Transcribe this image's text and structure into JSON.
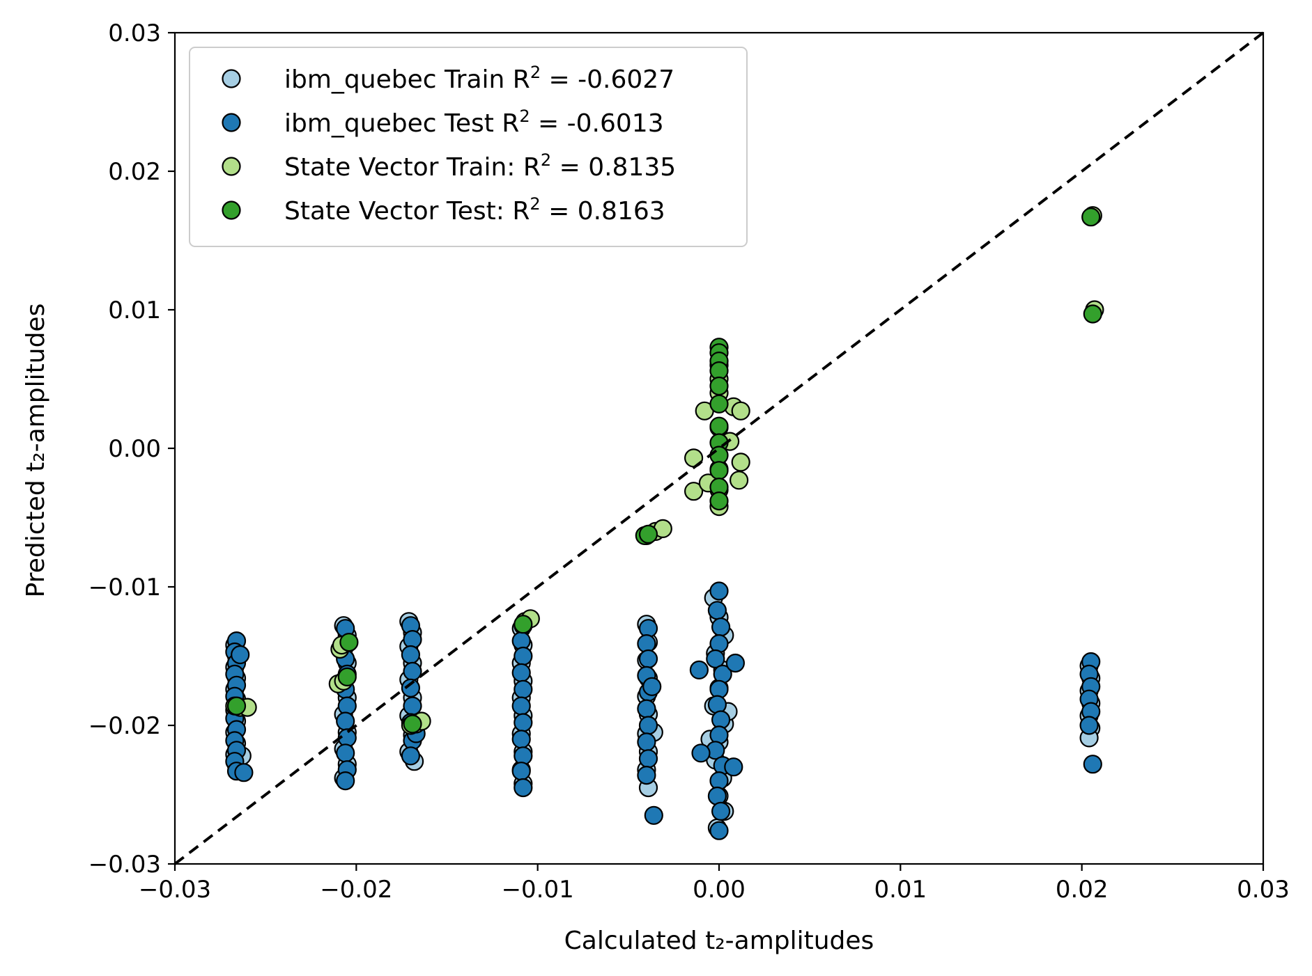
{
  "chart_data": {
    "type": "scatter",
    "xlabel": "Calculated t₂-amplitudes",
    "ylabel": "Predicted t₂-amplitudes",
    "xlim": [
      -0.03,
      0.03
    ],
    "ylim": [
      -0.03,
      0.03
    ],
    "x_ticks": [
      -0.03,
      -0.02,
      -0.01,
      0.0,
      0.01,
      0.02,
      0.03
    ],
    "y_ticks": [
      -0.03,
      -0.02,
      -0.01,
      0.0,
      0.01,
      0.02,
      0.03
    ],
    "x_tick_labels": [
      "−0.03",
      "−0.02",
      "−0.01",
      "0.00",
      "0.01",
      "0.02",
      "0.03"
    ],
    "y_tick_labels": [
      "−0.03",
      "−0.02",
      "−0.01",
      "0.00",
      "0.01",
      "0.02",
      "0.03"
    ],
    "grid": false,
    "legend_position": "top-left",
    "reference_line": {
      "style": "dashed",
      "color": "#000000",
      "from": [
        -0.03,
        -0.03
      ],
      "to": [
        0.03,
        0.03
      ]
    },
    "series": [
      {
        "name": "ibm_quebec Train R² = -0.6027",
        "legend": {
          "prefix": "ibm_quebec Train R",
          "sup": "2",
          "suffix": " = -0.6027"
        },
        "color": "#a6cee3",
        "points": [
          [
            -0.0267,
            -0.0142
          ],
          [
            -0.0266,
            -0.015
          ],
          [
            -0.0267,
            -0.0158
          ],
          [
            -0.0266,
            -0.0166
          ],
          [
            -0.0267,
            -0.0174
          ],
          [
            -0.0266,
            -0.0181
          ],
          [
            -0.0267,
            -0.0189
          ],
          [
            -0.0266,
            -0.0197
          ],
          [
            -0.0267,
            -0.0205
          ],
          [
            -0.0266,
            -0.0213
          ],
          [
            -0.0267,
            -0.0221
          ],
          [
            -0.0266,
            -0.0229
          ],
          [
            -0.0263,
            -0.0222
          ],
          [
            -0.0207,
            -0.0128
          ],
          [
            -0.0205,
            -0.0135
          ],
          [
            -0.0207,
            -0.0145
          ],
          [
            -0.0205,
            -0.0155
          ],
          [
            -0.0207,
            -0.0168
          ],
          [
            -0.0205,
            -0.018
          ],
          [
            -0.0207,
            -0.0192
          ],
          [
            -0.0205,
            -0.0205
          ],
          [
            -0.0207,
            -0.0217
          ],
          [
            -0.0205,
            -0.0228
          ],
          [
            -0.0207,
            -0.0238
          ],
          [
            -0.0171,
            -0.0125
          ],
          [
            -0.0169,
            -0.0133
          ],
          [
            -0.0171,
            -0.0143
          ],
          [
            -0.0169,
            -0.0155
          ],
          [
            -0.0171,
            -0.0167
          ],
          [
            -0.0169,
            -0.018
          ],
          [
            -0.0171,
            -0.0193
          ],
          [
            -0.0169,
            -0.0207
          ],
          [
            -0.0171,
            -0.0219
          ],
          [
            -0.0168,
            -0.0226
          ],
          [
            -0.0109,
            -0.013
          ],
          [
            -0.0108,
            -0.0142
          ],
          [
            -0.0109,
            -0.0155
          ],
          [
            -0.0108,
            -0.0168
          ],
          [
            -0.0109,
            -0.018
          ],
          [
            -0.0108,
            -0.0193
          ],
          [
            -0.0109,
            -0.0206
          ],
          [
            -0.0108,
            -0.0219
          ],
          [
            -0.0109,
            -0.0232
          ],
          [
            -0.0108,
            -0.0242
          ],
          [
            -0.004,
            -0.0127
          ],
          [
            -0.0039,
            -0.014
          ],
          [
            -0.004,
            -0.0153
          ],
          [
            -0.0039,
            -0.0166
          ],
          [
            -0.004,
            -0.0179
          ],
          [
            -0.0039,
            -0.0192
          ],
          [
            -0.004,
            -0.0206
          ],
          [
            -0.0039,
            -0.0219
          ],
          [
            -0.004,
            -0.0232
          ],
          [
            -0.0039,
            -0.0245
          ],
          [
            -0.0036,
            -0.0205
          ],
          [
            -0.0003,
            -0.0108
          ],
          [
            0.0,
            -0.0122
          ],
          [
            0.0003,
            -0.0135
          ],
          [
            -0.0002,
            -0.0148
          ],
          [
            0.0002,
            -0.016
          ],
          [
            0.0,
            -0.0173
          ],
          [
            -0.0003,
            -0.0186
          ],
          [
            0.0003,
            -0.0199
          ],
          [
            0.0,
            -0.0212
          ],
          [
            -0.0002,
            -0.0225
          ],
          [
            0.0002,
            -0.0238
          ],
          [
            0.0,
            -0.0251
          ],
          [
            0.0003,
            -0.0262
          ],
          [
            -0.0001,
            -0.0274
          ],
          [
            0.0005,
            -0.019
          ],
          [
            -0.0005,
            -0.021
          ],
          [
            0.0204,
            -0.0157
          ],
          [
            0.0205,
            -0.0166
          ],
          [
            0.0204,
            -0.0175
          ],
          [
            0.0205,
            -0.0184
          ],
          [
            0.0204,
            -0.0193
          ],
          [
            0.0205,
            -0.0202
          ],
          [
            0.0204,
            -0.0209
          ]
        ]
      },
      {
        "name": "ibm_quebec Test R² = -0.6013",
        "legend": {
          "prefix": "ibm_quebec Test R",
          "sup": "2",
          "suffix": " = -0.6013"
        },
        "color": "#1f78b4",
        "points": [
          [
            -0.0266,
            -0.0139
          ],
          [
            -0.0267,
            -0.0147
          ],
          [
            -0.0266,
            -0.0155
          ],
          [
            -0.0267,
            -0.0163
          ],
          [
            -0.0266,
            -0.0171
          ],
          [
            -0.0267,
            -0.0179
          ],
          [
            -0.0266,
            -0.0187
          ],
          [
            -0.0267,
            -0.0195
          ],
          [
            -0.0266,
            -0.0203
          ],
          [
            -0.0267,
            -0.0211
          ],
          [
            -0.0266,
            -0.0218
          ],
          [
            -0.0267,
            -0.0226
          ],
          [
            -0.0266,
            -0.0233
          ],
          [
            -0.0262,
            -0.0234
          ],
          [
            -0.0264,
            -0.0149
          ],
          [
            -0.0206,
            -0.013
          ],
          [
            -0.0205,
            -0.0141
          ],
          [
            -0.0206,
            -0.0152
          ],
          [
            -0.0205,
            -0.0163
          ],
          [
            -0.0206,
            -0.0174
          ],
          [
            -0.0205,
            -0.0186
          ],
          [
            -0.0206,
            -0.0197
          ],
          [
            -0.0205,
            -0.0209
          ],
          [
            -0.0206,
            -0.022
          ],
          [
            -0.0205,
            -0.0232
          ],
          [
            -0.0206,
            -0.024
          ],
          [
            -0.017,
            -0.0128
          ],
          [
            -0.0169,
            -0.0138
          ],
          [
            -0.017,
            -0.0149
          ],
          [
            -0.0169,
            -0.0161
          ],
          [
            -0.017,
            -0.0173
          ],
          [
            -0.0169,
            -0.0186
          ],
          [
            -0.017,
            -0.0198
          ],
          [
            -0.0169,
            -0.0211
          ],
          [
            -0.017,
            -0.0222
          ],
          [
            -0.0167,
            -0.0206
          ],
          [
            -0.0108,
            -0.0128
          ],
          [
            -0.0109,
            -0.0139
          ],
          [
            -0.0108,
            -0.015
          ],
          [
            -0.0109,
            -0.0162
          ],
          [
            -0.0108,
            -0.0174
          ],
          [
            -0.0109,
            -0.0186
          ],
          [
            -0.0108,
            -0.0198
          ],
          [
            -0.0109,
            -0.021
          ],
          [
            -0.0108,
            -0.0222
          ],
          [
            -0.0109,
            -0.0233
          ],
          [
            -0.0108,
            -0.0245
          ],
          [
            -0.0039,
            -0.013
          ],
          [
            -0.004,
            -0.0141
          ],
          [
            -0.0039,
            -0.0152
          ],
          [
            -0.004,
            -0.0164
          ],
          [
            -0.0039,
            -0.0176
          ],
          [
            -0.004,
            -0.0188
          ],
          [
            -0.0039,
            -0.02
          ],
          [
            -0.004,
            -0.0212
          ],
          [
            -0.0039,
            -0.0224
          ],
          [
            -0.004,
            -0.0236
          ],
          [
            -0.0037,
            -0.0172
          ],
          [
            -0.0036,
            -0.0265
          ],
          [
            0.0,
            -0.0103
          ],
          [
            -0.0001,
            -0.0117
          ],
          [
            0.0001,
            -0.0129
          ],
          [
            0.0,
            -0.0141
          ],
          [
            -0.0002,
            -0.0152
          ],
          [
            0.0002,
            -0.0163
          ],
          [
            0.0,
            -0.0174
          ],
          [
            -0.0001,
            -0.0185
          ],
          [
            0.0001,
            -0.0196
          ],
          [
            0.0,
            -0.0207
          ],
          [
            -0.0002,
            -0.0218
          ],
          [
            0.0002,
            -0.0229
          ],
          [
            0.0,
            -0.024
          ],
          [
            -0.0001,
            -0.0251
          ],
          [
            0.0001,
            -0.0262
          ],
          [
            0.0,
            -0.0276
          ],
          [
            -0.0011,
            -0.016
          ],
          [
            0.0009,
            -0.0155
          ],
          [
            -0.001,
            -0.022
          ],
          [
            0.0008,
            -0.023
          ],
          [
            0.0205,
            -0.0154
          ],
          [
            0.0204,
            -0.0163
          ],
          [
            0.0205,
            -0.0172
          ],
          [
            0.0204,
            -0.0181
          ],
          [
            0.0205,
            -0.019
          ],
          [
            0.0204,
            -0.02
          ],
          [
            0.0206,
            -0.0228
          ]
        ]
      },
      {
        "name": "State Vector Train: R² = 0.8135",
        "legend": {
          "prefix": "State Vector Train: R",
          "sup": "2",
          "suffix": " = 0.8135"
        },
        "color": "#b2df8a",
        "points": [
          [
            -0.0267,
            -0.0186
          ],
          [
            -0.0264,
            -0.0187
          ],
          [
            -0.026,
            -0.0187
          ],
          [
            -0.0209,
            -0.0145
          ],
          [
            -0.0208,
            -0.0142
          ],
          [
            -0.021,
            -0.017
          ],
          [
            -0.0207,
            -0.0168
          ],
          [
            -0.017,
            -0.02
          ],
          [
            -0.0167,
            -0.0199
          ],
          [
            -0.0164,
            -0.0197
          ],
          [
            -0.0107,
            -0.0125
          ],
          [
            -0.0104,
            -0.0123
          ],
          [
            -0.004,
            -0.0063
          ],
          [
            -0.0035,
            -0.006
          ],
          [
            -0.0031,
            -0.0058
          ],
          [
            -0.0014,
            -0.0031
          ],
          [
            -0.0014,
            -0.0007
          ],
          [
            -0.0008,
            0.0027
          ],
          [
            0.0008,
            0.003
          ],
          [
            0.0012,
            0.0027
          ],
          [
            0.0012,
            -0.001
          ],
          [
            0.0011,
            -0.0023
          ],
          [
            0.0,
            0.006
          ],
          [
            0.0,
            0.005
          ],
          [
            0.0,
            0.004
          ],
          [
            0.0,
            0.0015
          ],
          [
            0.0,
            -0.0015
          ],
          [
            0.0,
            -0.003
          ],
          [
            0.0,
            -0.0042
          ],
          [
            -0.0006,
            -0.0025
          ],
          [
            0.0006,
            0.0005
          ],
          [
            0.0206,
            0.0168
          ],
          [
            0.0207,
            0.01
          ]
        ]
      },
      {
        "name": "State Vector Test: R² = 0.8163",
        "legend": {
          "prefix": "State Vector Test: R",
          "sup": "2",
          "suffix": " = 0.8163"
        },
        "color": "#33a02c",
        "points": [
          [
            -0.0266,
            -0.0186
          ],
          [
            -0.0204,
            -0.014
          ],
          [
            -0.0205,
            -0.0165
          ],
          [
            -0.0169,
            -0.0199
          ],
          [
            -0.0108,
            -0.0127
          ],
          [
            -0.0041,
            -0.0063
          ],
          [
            -0.0039,
            -0.0062
          ],
          [
            0.0,
            0.0073
          ],
          [
            0.0,
            0.0069
          ],
          [
            0.0,
            0.0063
          ],
          [
            0.0,
            0.0056
          ],
          [
            0.0,
            0.0045
          ],
          [
            0.0,
            0.0032
          ],
          [
            0.0,
            0.0016
          ],
          [
            0.0,
            0.0004
          ],
          [
            0.0,
            -0.0005
          ],
          [
            0.0,
            -0.0016
          ],
          [
            0.0,
            -0.0028
          ],
          [
            0.0,
            -0.0038
          ],
          [
            0.0205,
            0.0167
          ],
          [
            0.0206,
            0.0097
          ]
        ]
      }
    ]
  }
}
